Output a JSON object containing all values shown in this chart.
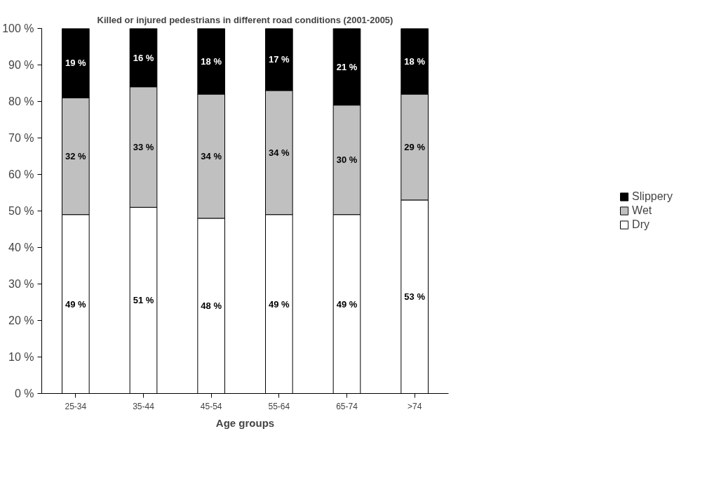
{
  "chart_data": {
    "type": "bar",
    "stacked": true,
    "title": "Killed or injured pedestrians in different road conditions (2001-2005)",
    "xlabel": "Age groups",
    "categories": [
      "25-34",
      "35-44",
      "45-54",
      "55-64",
      "65-74",
      ">74"
    ],
    "series": [
      {
        "name": "Dry",
        "color": "#ffffff",
        "values": [
          49,
          51,
          48,
          49,
          49,
          53
        ],
        "value_labels": [
          "49 %",
          "51 %",
          "48 %",
          "49 %",
          "49 %",
          "53 %"
        ]
      },
      {
        "name": "Wet",
        "color": "#c0c0c0",
        "values": [
          32,
          33,
          34,
          34,
          30,
          29
        ],
        "value_labels": [
          "32 %",
          "33 %",
          "34 %",
          "34 %",
          "30 %",
          "29 %"
        ]
      },
      {
        "name": "Slippery",
        "color": "#000000",
        "values": [
          19,
          16,
          18,
          17,
          21,
          18
        ],
        "value_labels": [
          "19 %",
          "16 %",
          "18 %",
          "17 %",
          "21 %",
          "18 %"
        ]
      }
    ],
    "ylim": [
      0,
      100
    ],
    "yticks": [
      {
        "value": 0,
        "label": "0 %"
      },
      {
        "value": 10,
        "label": "10 %"
      },
      {
        "value": 20,
        "label": "20 %"
      },
      {
        "value": 30,
        "label": "30 %"
      },
      {
        "value": 40,
        "label": "40 %"
      },
      {
        "value": 50,
        "label": "50 %"
      },
      {
        "value": 60,
        "label": "60 %"
      },
      {
        "value": 70,
        "label": "70 %"
      },
      {
        "value": 80,
        "label": "80 %"
      },
      {
        "value": 90,
        "label": "90 %"
      },
      {
        "value": 100,
        "label": "100 %"
      }
    ],
    "legend": "right",
    "grid": false
  }
}
